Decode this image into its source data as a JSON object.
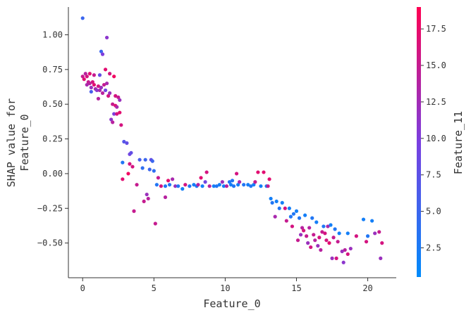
{
  "chart_data": {
    "type": "scatter",
    "xlabel": "Feature_0",
    "ylabel_lines": [
      "SHAP value for",
      "Feature_0"
    ],
    "xlim": [
      -1,
      22
    ],
    "ylim": [
      -0.75,
      1.2
    ],
    "xticks": [
      0,
      5,
      10,
      15,
      20
    ],
    "xtick_labels": [
      "0",
      "5",
      "10",
      "15",
      "20"
    ],
    "yticks": [
      -0.5,
      -0.25,
      0.0,
      0.25,
      0.5,
      0.75,
      1.0
    ],
    "ytick_labels": [
      "−0.50",
      "−0.25",
      "0.00",
      "0.25",
      "0.50",
      "0.75",
      "1.00"
    ],
    "colorbar": {
      "label": "Feature_11",
      "range": [
        0.5,
        19
      ],
      "ticks": [
        2.5,
        5.0,
        7.5,
        10.0,
        12.5,
        15.0,
        17.5
      ],
      "tick_labels": [
        "2.5",
        "5.0",
        "7.5",
        "10.0",
        "12.5",
        "15.0",
        "17.5"
      ],
      "colormap": [
        "#008bfb",
        "#7a3fe0",
        "#ff0052"
      ]
    },
    "points": [
      [
        0.0,
        1.12,
        5
      ],
      [
        0.0,
        0.7,
        15
      ],
      [
        0.1,
        0.68,
        17
      ],
      [
        0.2,
        0.72,
        14
      ],
      [
        0.3,
        0.7,
        16
      ],
      [
        0.3,
        0.64,
        13
      ],
      [
        0.4,
        0.66,
        15
      ],
      [
        0.5,
        0.72,
        17
      ],
      [
        0.5,
        0.65,
        14
      ],
      [
        0.6,
        0.62,
        12
      ],
      [
        0.6,
        0.59,
        6
      ],
      [
        0.7,
        0.66,
        16
      ],
      [
        0.8,
        0.64,
        17
      ],
      [
        0.8,
        0.71,
        15
      ],
      [
        0.9,
        0.61,
        13
      ],
      [
        1.0,
        0.6,
        11
      ],
      [
        1.1,
        0.63,
        16
      ],
      [
        1.1,
        0.54,
        14
      ],
      [
        1.2,
        0.6,
        13
      ],
      [
        1.2,
        0.71,
        8
      ],
      [
        1.3,
        0.88,
        5
      ],
      [
        1.3,
        0.62,
        12
      ],
      [
        1.4,
        0.58,
        14
      ],
      [
        1.4,
        0.86,
        10
      ],
      [
        1.5,
        0.64,
        15
      ],
      [
        1.6,
        0.75,
        17
      ],
      [
        1.6,
        0.6,
        9
      ],
      [
        1.7,
        0.98,
        11
      ],
      [
        1.7,
        0.65,
        13
      ],
      [
        1.8,
        0.56,
        16
      ],
      [
        1.9,
        0.58,
        12
      ],
      [
        1.9,
        0.72,
        16
      ],
      [
        2.0,
        0.39,
        11
      ],
      [
        2.1,
        0.5,
        15
      ],
      [
        2.1,
        0.37,
        14
      ],
      [
        2.2,
        0.43,
        10
      ],
      [
        2.2,
        0.7,
        18
      ],
      [
        2.3,
        0.49,
        17
      ],
      [
        2.3,
        0.56,
        16
      ],
      [
        2.4,
        0.48,
        13
      ],
      [
        2.4,
        0.43,
        16
      ],
      [
        2.5,
        0.55,
        15
      ],
      [
        2.6,
        0.53,
        12
      ],
      [
        2.6,
        0.44,
        17
      ],
      [
        2.7,
        0.35,
        16
      ],
      [
        2.8,
        0.08,
        3
      ],
      [
        2.8,
        -0.04,
        17
      ],
      [
        2.9,
        0.23,
        7
      ],
      [
        3.1,
        0.22,
        8
      ],
      [
        3.2,
        0.0,
        18
      ],
      [
        3.3,
        0.07,
        16
      ],
      [
        3.3,
        0.14,
        9
      ],
      [
        3.4,
        0.15,
        8
      ],
      [
        3.5,
        0.05,
        16
      ],
      [
        3.6,
        -0.27,
        15
      ],
      [
        3.8,
        -0.08,
        15
      ],
      [
        4.0,
        0.1,
        6
      ],
      [
        4.2,
        0.04,
        4
      ],
      [
        4.3,
        -0.2,
        15
      ],
      [
        4.4,
        0.1,
        5
      ],
      [
        4.5,
        -0.15,
        12
      ],
      [
        4.6,
        -0.18,
        14
      ],
      [
        4.7,
        0.03,
        5
      ],
      [
        4.8,
        0.1,
        8
      ],
      [
        4.9,
        0.09,
        5
      ],
      [
        5.0,
        0.02,
        4
      ],
      [
        5.1,
        -0.36,
        15
      ],
      [
        5.2,
        -0.08,
        3
      ],
      [
        5.3,
        -0.03,
        15
      ],
      [
        5.5,
        -0.09,
        16
      ],
      [
        5.8,
        -0.09,
        3
      ],
      [
        5.8,
        -0.17,
        14
      ],
      [
        6.0,
        -0.05,
        17
      ],
      [
        6.1,
        -0.08,
        3
      ],
      [
        6.3,
        -0.04,
        13
      ],
      [
        6.5,
        -0.09,
        12
      ],
      [
        6.7,
        -0.09,
        3
      ],
      [
        7.0,
        -0.11,
        2
      ],
      [
        7.2,
        -0.08,
        16
      ],
      [
        7.5,
        -0.09,
        3
      ],
      [
        7.8,
        -0.08,
        2
      ],
      [
        8.0,
        -0.09,
        3
      ],
      [
        8.1,
        -0.08,
        14
      ],
      [
        8.3,
        -0.03,
        17
      ],
      [
        8.4,
        -0.09,
        2
      ],
      [
        8.6,
        -0.06,
        9
      ],
      [
        8.7,
        0.01,
        16
      ],
      [
        8.9,
        -0.09,
        14
      ],
      [
        9.2,
        -0.09,
        2
      ],
      [
        9.4,
        -0.09,
        3
      ],
      [
        9.6,
        -0.08,
        2
      ],
      [
        9.8,
        -0.06,
        12
      ],
      [
        9.9,
        -0.09,
        2
      ],
      [
        10.1,
        -0.09,
        14
      ],
      [
        10.3,
        -0.06,
        3
      ],
      [
        10.4,
        -0.08,
        2
      ],
      [
        10.5,
        -0.05,
        3
      ],
      [
        10.6,
        -0.09,
        3
      ],
      [
        10.8,
        0.0,
        16
      ],
      [
        10.9,
        -0.08,
        2
      ],
      [
        11.0,
        -0.06,
        13
      ],
      [
        11.3,
        -0.08,
        3
      ],
      [
        11.6,
        -0.08,
        2
      ],
      [
        11.8,
        -0.09,
        3
      ],
      [
        12.0,
        -0.08,
        2
      ],
      [
        12.1,
        -0.06,
        15
      ],
      [
        12.3,
        0.01,
        17
      ],
      [
        12.5,
        -0.09,
        2
      ],
      [
        12.7,
        0.01,
        17
      ],
      [
        12.9,
        -0.09,
        2
      ],
      [
        13.0,
        -0.09,
        15
      ],
      [
        13.1,
        -0.04,
        17
      ],
      [
        13.2,
        -0.18,
        2
      ],
      [
        13.3,
        -0.21,
        3
      ],
      [
        13.5,
        -0.31,
        13
      ],
      [
        13.6,
        -0.2,
        2
      ],
      [
        13.8,
        -0.25,
        3
      ],
      [
        14.0,
        -0.21,
        2
      ],
      [
        14.2,
        -0.25,
        16
      ],
      [
        14.3,
        -0.34,
        15
      ],
      [
        14.5,
        -0.25,
        2
      ],
      [
        14.6,
        -0.31,
        3
      ],
      [
        14.7,
        -0.38,
        16
      ],
      [
        14.8,
        -0.29,
        3
      ],
      [
        15.0,
        -0.27,
        2
      ],
      [
        15.1,
        -0.48,
        15
      ],
      [
        15.2,
        -0.32,
        3
      ],
      [
        15.3,
        -0.44,
        12
      ],
      [
        15.4,
        -0.39,
        14
      ],
      [
        15.5,
        -0.41,
        16
      ],
      [
        15.6,
        -0.3,
        2
      ],
      [
        15.7,
        -0.45,
        15
      ],
      [
        15.8,
        -0.5,
        12
      ],
      [
        15.9,
        -0.39,
        14
      ],
      [
        16.0,
        -0.53,
        16
      ],
      [
        16.1,
        -0.32,
        3
      ],
      [
        16.2,
        -0.44,
        15
      ],
      [
        16.3,
        -0.48,
        14
      ],
      [
        16.4,
        -0.35,
        2
      ],
      [
        16.5,
        -0.52,
        12
      ],
      [
        16.6,
        -0.46,
        16
      ],
      [
        16.7,
        -0.55,
        14
      ],
      [
        16.8,
        -0.42,
        15
      ],
      [
        16.9,
        -0.38,
        3
      ],
      [
        17.0,
        -0.43,
        16
      ],
      [
        17.1,
        -0.48,
        16
      ],
      [
        17.2,
        -0.38,
        13
      ],
      [
        17.3,
        -0.5,
        17
      ],
      [
        17.4,
        -0.37,
        2
      ],
      [
        17.5,
        -0.61,
        12
      ],
      [
        17.6,
        -0.46,
        15
      ],
      [
        17.7,
        -0.4,
        3
      ],
      [
        17.8,
        -0.61,
        16
      ],
      [
        17.9,
        -0.49,
        15
      ],
      [
        18.0,
        -0.43,
        2
      ],
      [
        18.2,
        -0.56,
        12
      ],
      [
        18.3,
        -0.64,
        11
      ],
      [
        18.4,
        -0.55,
        14
      ],
      [
        18.6,
        -0.58,
        16
      ],
      [
        18.6,
        -0.43,
        2
      ],
      [
        18.8,
        -0.54,
        12
      ],
      [
        19.2,
        -0.45,
        16
      ],
      [
        19.7,
        -0.33,
        2
      ],
      [
        19.9,
        -0.49,
        16
      ],
      [
        20.0,
        -0.45,
        3
      ],
      [
        20.3,
        -0.34,
        2
      ],
      [
        20.5,
        -0.43,
        12
      ],
      [
        20.8,
        -0.42,
        15
      ],
      [
        20.9,
        -0.61,
        12
      ],
      [
        21.0,
        -0.5,
        16
      ]
    ]
  }
}
